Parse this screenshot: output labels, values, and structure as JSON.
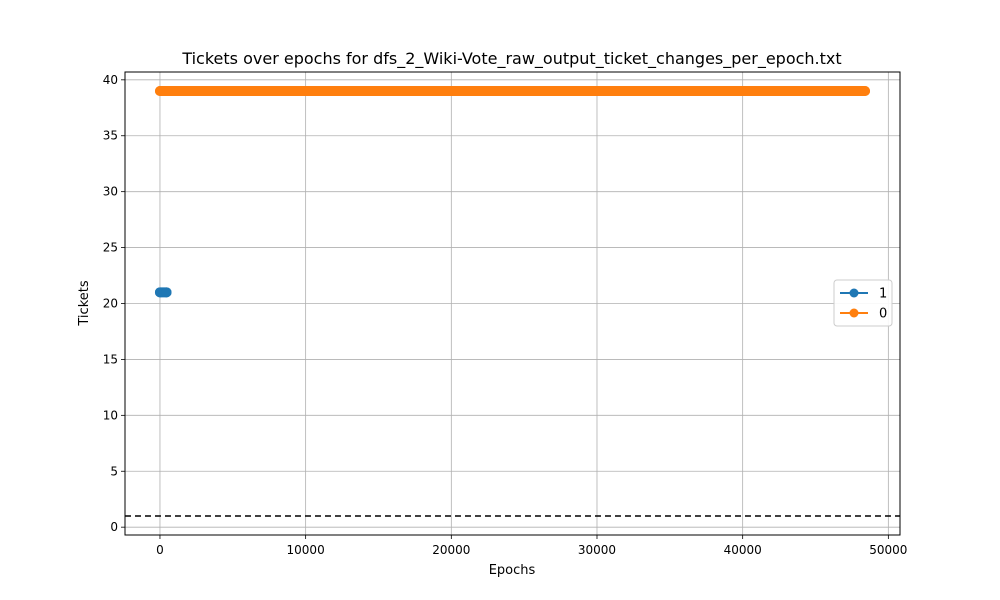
{
  "chart_data": {
    "type": "line",
    "title": "Tickets over epochs for dfs_2_Wiki-Vote_raw_output_ticket_changes_per_epoch.txt",
    "xlabel": "Epochs",
    "ylabel": "Tickets",
    "xlim": [
      -2400,
      50800
    ],
    "ylim": [
      -0.7,
      40.7
    ],
    "xticks": [
      0,
      10000,
      20000,
      30000,
      40000,
      50000
    ],
    "xtick_labels": [
      "0",
      "10000",
      "20000",
      "30000",
      "40000",
      "50000"
    ],
    "yticks": [
      0,
      5,
      10,
      15,
      20,
      25,
      30,
      35,
      40
    ],
    "ytick_labels": [
      "0",
      "5",
      "10",
      "15",
      "20",
      "25",
      "30",
      "35",
      "40"
    ],
    "grid": true,
    "legend_position": "center-right",
    "series": [
      {
        "name": "1",
        "color": "#1f77b4",
        "marker": "circle",
        "x_start": 0,
        "x_end": 450,
        "value": 21
      },
      {
        "name": "0",
        "color": "#ff7f0e",
        "marker": "circle",
        "x_start": 0,
        "x_end": 48400,
        "value": 39
      }
    ],
    "reference_line": {
      "y": 1,
      "style": "dashed",
      "color": "#000000"
    }
  }
}
